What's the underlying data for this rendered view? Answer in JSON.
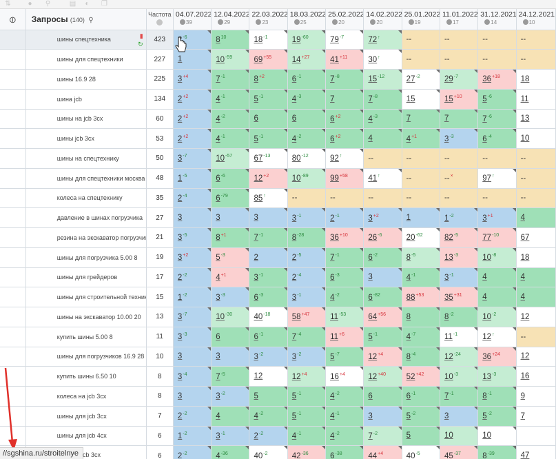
{
  "toolbar": {
    "icons": [
      "sort-icon",
      "tag-icon",
      "link-icon",
      "document-icon",
      "chart-icon",
      "copy-icon"
    ]
  },
  "header": {
    "query_label": "Запросы",
    "query_count": "(140)",
    "freq_label": "Частота",
    "dates": [
      {
        "date": "04.07.2022",
        "sub": "39"
      },
      {
        "date": "12.04.2022",
        "sub": "29"
      },
      {
        "date": "22.03.2022",
        "sub": "23"
      },
      {
        "date": "18.03.2022",
        "sub": "25"
      },
      {
        "date": "25.02.2022",
        "sub": "20"
      },
      {
        "date": "14.02.2022",
        "sub": "20"
      },
      {
        "date": "25.01.2022",
        "sub": "19"
      },
      {
        "date": "11.01.2022",
        "sub": "17"
      },
      {
        "date": "31.12.2021",
        "sub": "14"
      },
      {
        "date": "24.12.2021",
        "sub": "10"
      }
    ]
  },
  "colors": {
    "blue": "#b4d4ee",
    "green": "#9fe0b7",
    "light_green": "#c5edd3",
    "pink": "#fbd0d0",
    "tan": "#f7e2b5",
    "up": "#2b8a3e",
    "down": "#d6323a"
  },
  "status_url": "//sgshina.ru/stroitelnye",
  "peek_text": "cb 3cx",
  "rows": [
    {
      "q": "шины спецтехника",
      "f": "423",
      "cells": [
        [
          "2",
          "-6",
          "b"
        ],
        [
          "8",
          "10",
          "g"
        ],
        [
          "18",
          "-1",
          "w"
        ],
        [
          "19",
          "-60",
          "l"
        ],
        [
          "79",
          "-7",
          "w"
        ],
        [
          "72",
          "↑",
          "l"
        ],
        [
          "--",
          "",
          "t"
        ],
        [
          "--",
          "",
          "t"
        ],
        [
          "--",
          "",
          "t"
        ],
        [
          "--",
          "",
          "t"
        ]
      ]
    },
    {
      "q": "шины для спецтехники",
      "f": "227",
      "cells": [
        [
          "1",
          "",
          "b"
        ],
        [
          "10",
          "-59",
          "l"
        ],
        [
          "69",
          "+55",
          "p"
        ],
        [
          "14",
          "+27",
          "l"
        ],
        [
          "41",
          "+11",
          "p"
        ],
        [
          "30",
          "↑",
          "w"
        ],
        [
          "--",
          "",
          "t"
        ],
        [
          "--",
          "",
          "t"
        ],
        [
          "--",
          "",
          "t"
        ],
        [
          "--",
          "",
          "t"
        ]
      ]
    },
    {
      "q": "шины 16.9 28",
      "f": "225",
      "cells": [
        [
          "3",
          "+4",
          "b"
        ],
        [
          "7",
          "-1",
          "g"
        ],
        [
          "8",
          "+2",
          "g"
        ],
        [
          "6",
          "-1",
          "g"
        ],
        [
          "7",
          "-8",
          "g"
        ],
        [
          "15",
          "-12",
          "l"
        ],
        [
          "27",
          "-2",
          "w"
        ],
        [
          "29",
          "-7",
          "l"
        ],
        [
          "36",
          "+18",
          "p"
        ],
        [
          "18",
          "",
          "w"
        ]
      ]
    },
    {
      "q": "шина jcb",
      "f": "134",
      "cells": [
        [
          "2",
          "+2",
          "b"
        ],
        [
          "4",
          "-1",
          "g"
        ],
        [
          "5",
          "-1",
          "g"
        ],
        [
          "4",
          "-3",
          "g"
        ],
        [
          "7",
          "",
          "g"
        ],
        [
          "7",
          "-8",
          "g"
        ],
        [
          "15",
          "",
          "w"
        ],
        [
          "15",
          "+10",
          "p"
        ],
        [
          "5",
          "-6",
          "g"
        ],
        [
          "11",
          "",
          "w"
        ]
      ]
    },
    {
      "q": "шины на jcb 3cx",
      "f": "60",
      "cells": [
        [
          "2",
          "+2",
          "b"
        ],
        [
          "4",
          "-2",
          "g"
        ],
        [
          "6",
          "",
          "g"
        ],
        [
          "6",
          "",
          "g"
        ],
        [
          "6",
          "+2",
          "g"
        ],
        [
          "4",
          "-3",
          "g"
        ],
        [
          "7",
          "",
          "g"
        ],
        [
          "7",
          "",
          "g"
        ],
        [
          "7",
          "-6",
          "g"
        ],
        [
          "13",
          "",
          "w"
        ]
      ]
    },
    {
      "q": "шины jcb 3cx",
      "f": "53",
      "cells": [
        [
          "2",
          "+2",
          "b"
        ],
        [
          "4",
          "-1",
          "g"
        ],
        [
          "5",
          "-1",
          "g"
        ],
        [
          "4",
          "-2",
          "g"
        ],
        [
          "6",
          "+2",
          "g"
        ],
        [
          "4",
          "",
          "g"
        ],
        [
          "4",
          "+1",
          "g"
        ],
        [
          "3",
          "-3",
          "b"
        ],
        [
          "6",
          "-4",
          "g"
        ],
        [
          "10",
          "",
          "w"
        ]
      ]
    },
    {
      "q": "шины на спецтехнику",
      "f": "50",
      "cells": [
        [
          "3",
          "-7",
          "b"
        ],
        [
          "10",
          "-57",
          "l"
        ],
        [
          "67",
          "-13",
          "w"
        ],
        [
          "80",
          "-12",
          "w"
        ],
        [
          "92",
          "↑",
          "w"
        ],
        [
          "--",
          "",
          "t"
        ],
        [
          "--",
          "",
          "t"
        ],
        [
          "--",
          "",
          "t"
        ],
        [
          "--",
          "",
          "t"
        ],
        [
          "--",
          "",
          "t"
        ]
      ]
    },
    {
      "q": "шины для спецтехники москва",
      "f": "48",
      "cells": [
        [
          "1",
          "-5",
          "b"
        ],
        [
          "6",
          "-6",
          "g"
        ],
        [
          "12",
          "+2",
          "p"
        ],
        [
          "10",
          "-89",
          "l"
        ],
        [
          "99",
          "+58",
          "p"
        ],
        [
          "41",
          "↑",
          "w"
        ],
        [
          "--",
          "",
          "t"
        ],
        [
          "--",
          "×",
          "t"
        ],
        [
          "97",
          "↑",
          "w"
        ],
        [
          "--",
          "",
          "t"
        ]
      ]
    },
    {
      "q": "колеса на спецтехнику",
      "f": "35",
      "cells": [
        [
          "2",
          "-4",
          "b"
        ],
        [
          "6",
          "-79",
          "g"
        ],
        [
          "85",
          "↑",
          "w"
        ],
        [
          "--",
          "",
          "t"
        ],
        [
          "--",
          "",
          "t"
        ],
        [
          "--",
          "",
          "t"
        ],
        [
          "--",
          "",
          "t"
        ],
        [
          "--",
          "",
          "t"
        ],
        [
          "--",
          "",
          "t"
        ],
        [
          "--",
          "",
          "t"
        ]
      ]
    },
    {
      "q": "давление в шинах погрузчика",
      "f": "27",
      "cells": [
        [
          "3",
          "",
          "b"
        ],
        [
          "3",
          "",
          "b"
        ],
        [
          "3",
          "",
          "b"
        ],
        [
          "3",
          "-1",
          "b"
        ],
        [
          "2",
          "-1",
          "b"
        ],
        [
          "3",
          "+2",
          "b"
        ],
        [
          "1",
          "",
          "b"
        ],
        [
          "1",
          "-2",
          "b"
        ],
        [
          "3",
          "+1",
          "b"
        ],
        [
          "4",
          "",
          "g"
        ]
      ]
    },
    {
      "q": "резина на экскаватор погрузчик",
      "f": "21",
      "cells": [
        [
          "3",
          "-5",
          "b"
        ],
        [
          "8",
          "+1",
          "g"
        ],
        [
          "7",
          "-1",
          "g"
        ],
        [
          "8",
          "-28",
          "g"
        ],
        [
          "36",
          "+10",
          "p"
        ],
        [
          "26",
          "-6",
          "p"
        ],
        [
          "20",
          "-62",
          "w"
        ],
        [
          "82",
          "-5",
          "p"
        ],
        [
          "77",
          "-10",
          "p"
        ],
        [
          "67",
          "",
          "w"
        ]
      ]
    },
    {
      "q": "шины для погрузчика 5.00 8",
      "f": "19",
      "cells": [
        [
          "3",
          "+2",
          "b"
        ],
        [
          "5",
          "-3",
          "p"
        ],
        [
          "2",
          "",
          "b"
        ],
        [
          "2",
          "-5",
          "b"
        ],
        [
          "7",
          "-1",
          "g"
        ],
        [
          "6",
          "-2",
          "g"
        ],
        [
          "8",
          "-5",
          "l"
        ],
        [
          "13",
          "-3",
          "p"
        ],
        [
          "10",
          "-8",
          "l"
        ],
        [
          "18",
          "",
          "w"
        ]
      ]
    },
    {
      "q": "шины для грейдеров",
      "f": "17",
      "cells": [
        [
          "2",
          "-2",
          "b"
        ],
        [
          "4",
          "+1",
          "p"
        ],
        [
          "3",
          "-1",
          "g"
        ],
        [
          "2",
          "-4",
          "b"
        ],
        [
          "6",
          "-3",
          "g"
        ],
        [
          "3",
          "",
          "b"
        ],
        [
          "4",
          "-1",
          "g"
        ],
        [
          "3",
          "-1",
          "b"
        ],
        [
          "4",
          "",
          "g"
        ],
        [
          "4",
          "",
          "g"
        ]
      ]
    },
    {
      "q": "шины для строительной техники",
      "f": "15",
      "cells": [
        [
          "1",
          "-2",
          "b"
        ],
        [
          "3",
          "-3",
          "b"
        ],
        [
          "6",
          "-3",
          "g"
        ],
        [
          "3",
          "-1",
          "b"
        ],
        [
          "4",
          "-2",
          "g"
        ],
        [
          "6",
          "-82",
          "g"
        ],
        [
          "88",
          "+53",
          "p"
        ],
        [
          "35",
          "+31",
          "p"
        ],
        [
          "4",
          "",
          "g"
        ],
        [
          "4",
          "",
          "g"
        ]
      ]
    },
    {
      "q": "шины на экскаватор 10.00 20",
      "f": "13",
      "cells": [
        [
          "3",
          "-7",
          "b"
        ],
        [
          "10",
          "-30",
          "l"
        ],
        [
          "40",
          "-18",
          "w"
        ],
        [
          "58",
          "+47",
          "p"
        ],
        [
          "11",
          "-53",
          "l"
        ],
        [
          "64",
          "+56",
          "p"
        ],
        [
          "8",
          "",
          "g"
        ],
        [
          "8",
          "-2",
          "g"
        ],
        [
          "10",
          "-2",
          "l"
        ],
        [
          "12",
          "",
          "w"
        ]
      ]
    },
    {
      "q": "купить шины 5.00 8",
      "f": "11",
      "cells": [
        [
          "3",
          "-3",
          "b"
        ],
        [
          "6",
          "",
          "g"
        ],
        [
          "6",
          "-1",
          "g"
        ],
        [
          "7",
          "-4",
          "g"
        ],
        [
          "11",
          "+6",
          "p"
        ],
        [
          "5",
          "-1",
          "g"
        ],
        [
          "4",
          "-7",
          "g"
        ],
        [
          "11",
          "-1",
          "w"
        ],
        [
          "12",
          "↑",
          "w"
        ],
        [
          "--",
          "",
          "t"
        ]
      ]
    },
    {
      "q": "шины для погрузчиков 16.9 28",
      "f": "10",
      "cells": [
        [
          "3",
          "",
          "b"
        ],
        [
          "3",
          "",
          "b"
        ],
        [
          "3",
          "-2",
          "b"
        ],
        [
          "3",
          "-2",
          "b"
        ],
        [
          "5",
          "-7",
          "g"
        ],
        [
          "12",
          "+4",
          "p"
        ],
        [
          "8",
          "-4",
          "g"
        ],
        [
          "12",
          "-24",
          "l"
        ],
        [
          "36",
          "+24",
          "p"
        ],
        [
          "12",
          "",
          "w"
        ]
      ]
    },
    {
      "q": "купить шины 6.50 10",
      "f": "8",
      "cells": [
        [
          "3",
          "-4",
          "b"
        ],
        [
          "7",
          "-5",
          "g"
        ],
        [
          "12",
          "",
          "w"
        ],
        [
          "12",
          "+4",
          "l"
        ],
        [
          "16",
          "+4",
          "w"
        ],
        [
          "12",
          "+40",
          "l"
        ],
        [
          "52",
          "+42",
          "p"
        ],
        [
          "10",
          "-3",
          "l"
        ],
        [
          "13",
          "-3",
          "l"
        ],
        [
          "16",
          "",
          "w"
        ]
      ]
    },
    {
      "q": "колеса на jcb 3cx",
      "f": "8",
      "cells": [
        [
          "3",
          "",
          "b"
        ],
        [
          "3",
          "-2",
          "b"
        ],
        [
          "5",
          "",
          "g"
        ],
        [
          "5",
          "-1",
          "g"
        ],
        [
          "4",
          "-2",
          "g"
        ],
        [
          "6",
          "",
          "g"
        ],
        [
          "6",
          "-1",
          "g"
        ],
        [
          "7",
          "-1",
          "g"
        ],
        [
          "8",
          "-1",
          "g"
        ],
        [
          "9",
          "",
          "w"
        ]
      ]
    },
    {
      "q": "шины для jcb 3cx",
      "f": "7",
      "cells": [
        [
          "2",
          "-2",
          "b"
        ],
        [
          "4",
          "",
          "g"
        ],
        [
          "4",
          "-2",
          "g"
        ],
        [
          "5",
          "-1",
          "g"
        ],
        [
          "4",
          "-1",
          "g"
        ],
        [
          "3",
          "",
          "b"
        ],
        [
          "5",
          "-2",
          "g"
        ],
        [
          "3",
          "",
          "b"
        ],
        [
          "5",
          "-2",
          "g"
        ],
        [
          "7",
          "",
          "w"
        ]
      ]
    },
    {
      "q": "шины для jcb 4cx",
      "f": "6",
      "cells": [
        [
          "1",
          "-2",
          "b"
        ],
        [
          "3",
          "-1",
          "b"
        ],
        [
          "2",
          "-2",
          "b"
        ],
        [
          "4",
          "-1",
          "g"
        ],
        [
          "4",
          "-2",
          "g"
        ],
        [
          "7",
          "-2",
          "l"
        ],
        [
          "5",
          "",
          "g"
        ],
        [
          "10",
          "",
          "l"
        ],
        [
          "10",
          "",
          "w"
        ],
        [
          "",
          "",
          "w"
        ]
      ]
    },
    {
      "q": "",
      "f": "6",
      "cells": [
        [
          "2",
          "-2",
          "b"
        ],
        [
          "4",
          "-36",
          "g"
        ],
        [
          "40",
          "-2",
          "w"
        ],
        [
          "42",
          "-36",
          "p"
        ],
        [
          "6",
          "-38",
          "g"
        ],
        [
          "44",
          "+4",
          "p"
        ],
        [
          "40",
          "-5",
          "w"
        ],
        [
          "45",
          "-37",
          "p"
        ],
        [
          "8",
          "-39",
          "g"
        ],
        [
          "47",
          "",
          "w"
        ]
      ]
    }
  ]
}
